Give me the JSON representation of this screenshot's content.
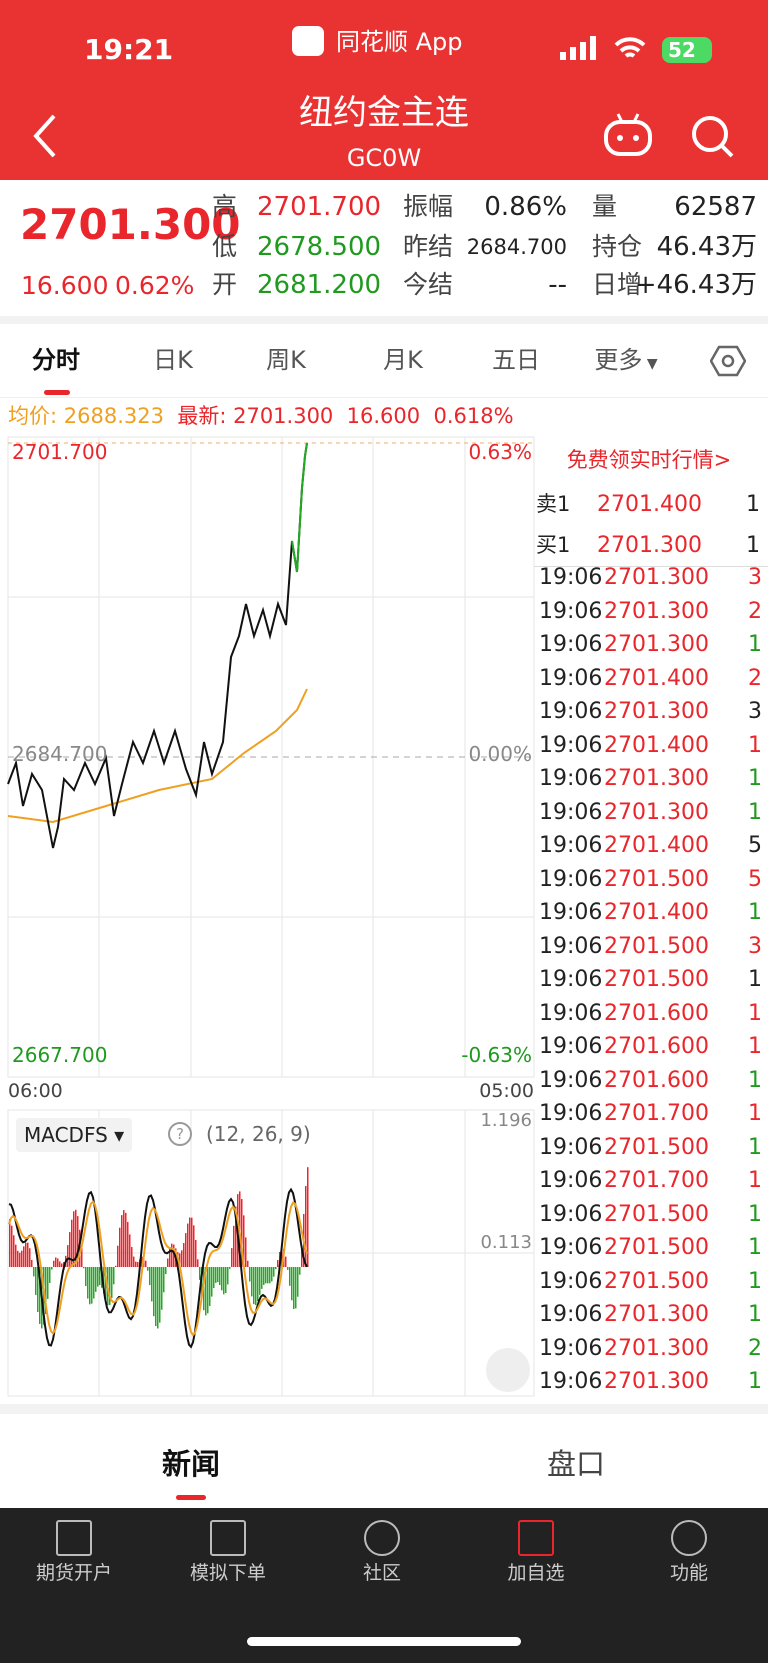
{
  "status": {
    "time": "19:21",
    "app": "同花顺 App",
    "battery": "52"
  },
  "header": {
    "title": "纽约金主连",
    "code": "GC0W"
  },
  "quote": {
    "price": "2701.300",
    "change": "16.600",
    "percent": "0.62%",
    "fields": [
      [
        {
          "label": "高",
          "value": "2701.700",
          "color": "#e8262b"
        },
        {
          "label": "振幅",
          "value": "0.86%",
          "color": "#222222"
        },
        {
          "label": "量",
          "value": "62587",
          "color": "#222222"
        }
      ],
      [
        {
          "label": "低",
          "value": "2678.500",
          "color": "#1f9a1f"
        },
        {
          "label": "昨结",
          "value": "2684.700",
          "color": "#222222"
        },
        {
          "label": "持仓",
          "value": "46.43万",
          "color": "#222222"
        }
      ],
      [
        {
          "label": "开",
          "value": "2681.200",
          "color": "#1f9a1f"
        },
        {
          "label": "今结",
          "value": "--",
          "color": "#222222"
        },
        {
          "label": "日增",
          "value": "+46.43万",
          "color": "#222222"
        }
      ]
    ]
  },
  "tabs": [
    "分时",
    "日K",
    "周K",
    "月K",
    "五日",
    "更多"
  ],
  "info": {
    "avg_label": "均价:",
    "avg": "2688.323",
    "last_label": "最新:",
    "last": "2701.300",
    "change": "16.600",
    "percent": "0.618%"
  },
  "chart": {
    "high": "2701.700",
    "high_pct": "0.63%",
    "base": "2684.700",
    "base_pct": "0.00%",
    "low": "2667.700",
    "low_pct": "-0.63%",
    "start": "06:00",
    "end": "05:00"
  },
  "macd": {
    "name": "MACDFS",
    "params": "(12, 26, 9)",
    "top": "1.196",
    "mid": "0.113"
  },
  "book": {
    "banner": "免费领实时行情>",
    "sell": {
      "label": "卖1",
      "price": "2701.400",
      "volume": "1"
    },
    "buy": {
      "label": "买1",
      "price": "2701.300",
      "volume": "1"
    }
  },
  "trades": [
    {
      "time": "19:06",
      "price": "2701.300",
      "volume": "3",
      "color": "#e8262b"
    },
    {
      "time": "19:06",
      "price": "2701.300",
      "volume": "2",
      "color": "#e8262b"
    },
    {
      "time": "19:06",
      "price": "2701.300",
      "volume": "1",
      "color": "#1f9a1f"
    },
    {
      "time": "19:06",
      "price": "2701.400",
      "volume": "2",
      "color": "#e8262b"
    },
    {
      "time": "19:06",
      "price": "2701.300",
      "volume": "3",
      "color": "#222222"
    },
    {
      "time": "19:06",
      "price": "2701.400",
      "volume": "1",
      "color": "#e8262b"
    },
    {
      "time": "19:06",
      "price": "2701.300",
      "volume": "1",
      "color": "#1f9a1f"
    },
    {
      "time": "19:06",
      "price": "2701.300",
      "volume": "1",
      "color": "#1f9a1f"
    },
    {
      "time": "19:06",
      "price": "2701.400",
      "volume": "5",
      "color": "#222222"
    },
    {
      "time": "19:06",
      "price": "2701.500",
      "volume": "5",
      "color": "#e8262b"
    },
    {
      "time": "19:06",
      "price": "2701.400",
      "volume": "1",
      "color": "#1f9a1f"
    },
    {
      "time": "19:06",
      "price": "2701.500",
      "volume": "3",
      "color": "#e8262b"
    },
    {
      "time": "19:06",
      "price": "2701.500",
      "volume": "1",
      "color": "#222222"
    },
    {
      "time": "19:06",
      "price": "2701.600",
      "volume": "1",
      "color": "#e8262b"
    },
    {
      "time": "19:06",
      "price": "2701.600",
      "volume": "1",
      "color": "#e8262b"
    },
    {
      "time": "19:06",
      "price": "2701.600",
      "volume": "1",
      "color": "#1f9a1f"
    },
    {
      "time": "19:06",
      "price": "2701.700",
      "volume": "1",
      "color": "#e8262b"
    },
    {
      "time": "19:06",
      "price": "2701.500",
      "volume": "1",
      "color": "#1f9a1f"
    },
    {
      "time": "19:06",
      "price": "2701.700",
      "volume": "1",
      "color": "#e8262b"
    },
    {
      "time": "19:06",
      "price": "2701.500",
      "volume": "1",
      "color": "#1f9a1f"
    },
    {
      "time": "19:06",
      "price": "2701.500",
      "volume": "1",
      "color": "#1f9a1f"
    },
    {
      "time": "19:06",
      "price": "2701.500",
      "volume": "1",
      "color": "#1f9a1f"
    },
    {
      "time": "19:06",
      "price": "2701.300",
      "volume": "1",
      "color": "#1f9a1f"
    },
    {
      "time": "19:06",
      "price": "2701.300",
      "volume": "2",
      "color": "#1f9a1f"
    },
    {
      "time": "19:06",
      "price": "2701.300",
      "volume": "1",
      "color": "#1f9a1f"
    }
  ],
  "bottom_tabs": [
    "新闻",
    "盘口"
  ],
  "nav": [
    "期货开户",
    "模拟下单",
    "社区",
    "加自选",
    "功能"
  ]
}
